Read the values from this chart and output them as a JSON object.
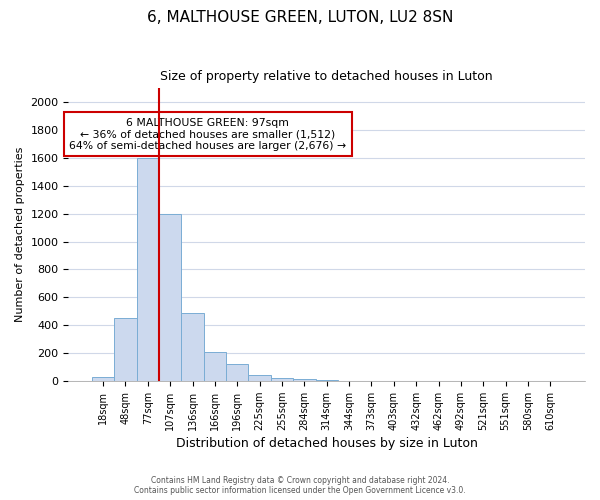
{
  "title": "6, MALTHOUSE GREEN, LUTON, LU2 8SN",
  "subtitle": "Size of property relative to detached houses in Luton",
  "xlabel": "Distribution of detached houses by size in Luton",
  "ylabel": "Number of detached properties",
  "bin_labels": [
    "18sqm",
    "48sqm",
    "77sqm",
    "107sqm",
    "136sqm",
    "166sqm",
    "196sqm",
    "225sqm",
    "255sqm",
    "284sqm",
    "314sqm",
    "344sqm",
    "373sqm",
    "403sqm",
    "432sqm",
    "462sqm",
    "492sqm",
    "521sqm",
    "551sqm",
    "580sqm",
    "610sqm"
  ],
  "bar_heights": [
    30,
    450,
    1600,
    1200,
    490,
    210,
    120,
    45,
    20,
    10,
    5,
    0,
    0,
    0,
    0,
    0,
    0,
    0,
    0,
    0,
    0
  ],
  "bar_color": "#ccd9ee",
  "bar_edge_color": "#7aadd4",
  "vline_color": "#cc0000",
  "annotation_text": "6 MALTHOUSE GREEN: 97sqm\n← 36% of detached houses are smaller (1,512)\n64% of semi-detached houses are larger (2,676) →",
  "annotation_box_color": "white",
  "annotation_box_edge_color": "#cc0000",
  "ylim": [
    0,
    2100
  ],
  "yticks": [
    0,
    200,
    400,
    600,
    800,
    1000,
    1200,
    1400,
    1600,
    1800,
    2000
  ],
  "footer_line1": "Contains HM Land Registry data © Crown copyright and database right 2024.",
  "footer_line2": "Contains public sector information licensed under the Open Government Licence v3.0.",
  "background_color": "#ffffff",
  "plot_bg_color": "#ffffff",
  "grid_color": "#d0d8e8",
  "title_fontsize": 11,
  "subtitle_fontsize": 9
}
